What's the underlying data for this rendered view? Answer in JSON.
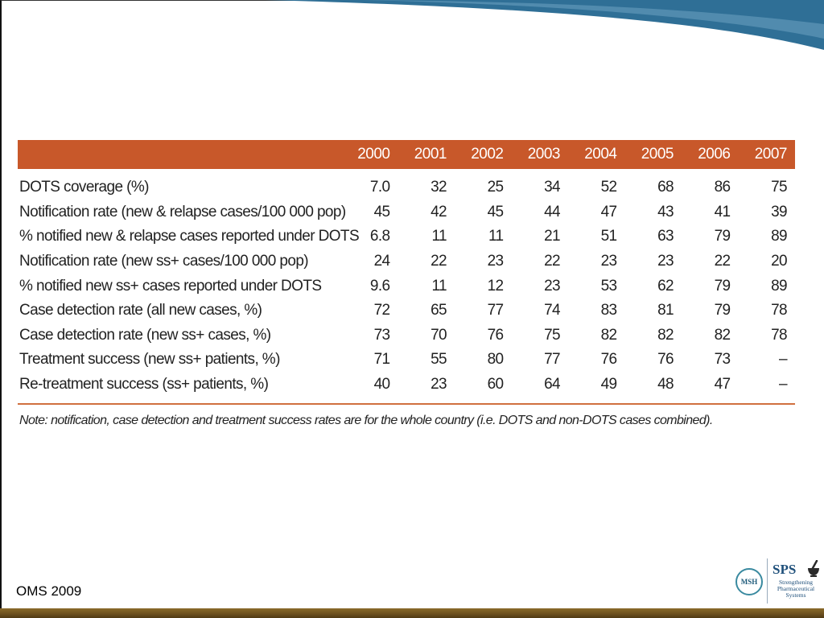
{
  "table": {
    "years": [
      "2000",
      "2001",
      "2002",
      "2003",
      "2004",
      "2005",
      "2006",
      "2007"
    ],
    "rows": [
      {
        "label": "DOTS coverage (%)",
        "values": [
          "7.0",
          "32",
          "25",
          "34",
          "52",
          "68",
          "86",
          "75"
        ]
      },
      {
        "label": "Notification rate (new & relapse cases/100 000 pop)",
        "values": [
          "45",
          "42",
          "45",
          "44",
          "47",
          "43",
          "41",
          "39"
        ]
      },
      {
        "label": "% notified new & relapse cases reported under DOTS",
        "values": [
          "6.8",
          "11",
          "11",
          "21",
          "51",
          "63",
          "79",
          "89"
        ]
      },
      {
        "label": "Notification rate (new ss+ cases/100 000 pop)",
        "values": [
          "24",
          "22",
          "23",
          "22",
          "23",
          "23",
          "22",
          "20"
        ]
      },
      {
        "label": "% notified new ss+ cases reported under DOTS",
        "values": [
          "9.6",
          "11",
          "12",
          "23",
          "53",
          "62",
          "79",
          "89"
        ]
      },
      {
        "label": "Case detection rate (all new cases, %)",
        "values": [
          "72",
          "65",
          "77",
          "74",
          "83",
          "81",
          "79",
          "78"
        ]
      },
      {
        "label": "Case detection rate (new ss+ cases, %)",
        "values": [
          "73",
          "70",
          "76",
          "75",
          "82",
          "82",
          "82",
          "78"
        ]
      },
      {
        "label": "Treatment success (new ss+ patients, %)",
        "values": [
          "71",
          "55",
          "80",
          "77",
          "76",
          "76",
          "73",
          "–"
        ]
      },
      {
        "label": "Re-treatment success (ss+ patients, %)",
        "values": [
          "40",
          "23",
          "60",
          "64",
          "49",
          "48",
          "47",
          "–"
        ]
      }
    ],
    "note": "Note: notification, case detection and treatment success rates are for the whole country (i.e. DOTS and non-DOTS cases combined).",
    "header_color": "#c8582a"
  },
  "source": "OMS 2009",
  "logos": {
    "msh": "MSH",
    "sps": "SPS",
    "sps_tagline": [
      "Strengthening",
      "Pharmaceutical",
      "Systems"
    ]
  }
}
